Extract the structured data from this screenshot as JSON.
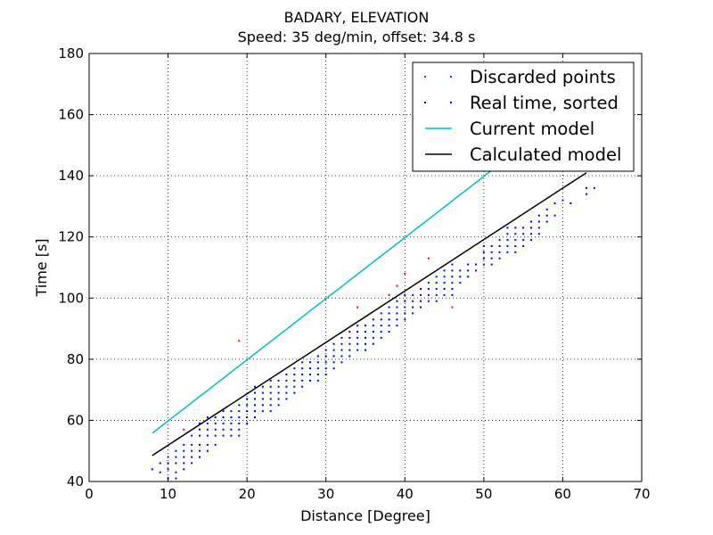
{
  "chart_data": {
    "type": "scatter",
    "title": "BADARY, ELEVATION",
    "subtitle": "Speed: 35 deg/min, offset: 34.8 s",
    "xlabel": "Distance [Degree]",
    "ylabel": "Time [s]",
    "xlim": [
      0,
      70
    ],
    "ylim": [
      40,
      180
    ],
    "xticks": [
      "0",
      "10",
      "20",
      "30",
      "40",
      "50",
      "60",
      "70"
    ],
    "yticks": [
      "40",
      "60",
      "80",
      "100",
      "120",
      "140",
      "160",
      "180"
    ],
    "grid": true,
    "legend_position": "top-right",
    "series": [
      {
        "name": "Discarded points",
        "kind": "points",
        "color": "#ff0000",
        "points": [
          [
            12,
            57
          ],
          [
            19,
            86
          ],
          [
            34,
            97
          ],
          [
            38,
            101
          ],
          [
            39,
            104
          ],
          [
            40,
            108
          ],
          [
            43,
            113
          ],
          [
            46,
            97
          ]
        ]
      },
      {
        "name": "Real time, sorted",
        "kind": "points",
        "color": "#0000ff",
        "points": [
          [
            8,
            44
          ],
          [
            9,
            43
          ],
          [
            9,
            46
          ],
          [
            10,
            41
          ],
          [
            10,
            44
          ],
          [
            10,
            46
          ],
          [
            10,
            48
          ],
          [
            11,
            41
          ],
          [
            11,
            43
          ],
          [
            11,
            46
          ],
          [
            11,
            48
          ],
          [
            11,
            50
          ],
          [
            12,
            44
          ],
          [
            12,
            46
          ],
          [
            12,
            48
          ],
          [
            12,
            50
          ],
          [
            12,
            52
          ],
          [
            13,
            46
          ],
          [
            13,
            48
          ],
          [
            13,
            50
          ],
          [
            13,
            52
          ],
          [
            13,
            55
          ],
          [
            14,
            48
          ],
          [
            14,
            50
          ],
          [
            14,
            52
          ],
          [
            14,
            55
          ],
          [
            14,
            57
          ],
          [
            14,
            59
          ],
          [
            15,
            50
          ],
          [
            15,
            52
          ],
          [
            15,
            55
          ],
          [
            15,
            57
          ],
          [
            15,
            59
          ],
          [
            15,
            61
          ],
          [
            16,
            52
          ],
          [
            16,
            55
          ],
          [
            16,
            57
          ],
          [
            16,
            59
          ],
          [
            16,
            61
          ],
          [
            17,
            55
          ],
          [
            17,
            57
          ],
          [
            17,
            59
          ],
          [
            17,
            61
          ],
          [
            17,
            63
          ],
          [
            18,
            55
          ],
          [
            18,
            57
          ],
          [
            18,
            59
          ],
          [
            18,
            61
          ],
          [
            18,
            63
          ],
          [
            19,
            55
          ],
          [
            19,
            57
          ],
          [
            19,
            59
          ],
          [
            19,
            61
          ],
          [
            19,
            63
          ],
          [
            19,
            65
          ],
          [
            20,
            59
          ],
          [
            20,
            61
          ],
          [
            20,
            63
          ],
          [
            20,
            65
          ],
          [
            20,
            67
          ],
          [
            21,
            61
          ],
          [
            21,
            63
          ],
          [
            21,
            65
          ],
          [
            21,
            67
          ],
          [
            21,
            69
          ],
          [
            21,
            71
          ],
          [
            22,
            63
          ],
          [
            22,
            65
          ],
          [
            22,
            67
          ],
          [
            22,
            69
          ],
          [
            22,
            71
          ],
          [
            23,
            63
          ],
          [
            23,
            65
          ],
          [
            23,
            67
          ],
          [
            23,
            69
          ],
          [
            23,
            71
          ],
          [
            23,
            73
          ],
          [
            24,
            65
          ],
          [
            24,
            67
          ],
          [
            24,
            69
          ],
          [
            24,
            71
          ],
          [
            24,
            73
          ],
          [
            25,
            67
          ],
          [
            25,
            69
          ],
          [
            25,
            71
          ],
          [
            25,
            73
          ],
          [
            25,
            75
          ],
          [
            26,
            69
          ],
          [
            26,
            71
          ],
          [
            26,
            73
          ],
          [
            26,
            75
          ],
          [
            26,
            77
          ],
          [
            27,
            71
          ],
          [
            27,
            73
          ],
          [
            27,
            75
          ],
          [
            27,
            77
          ],
          [
            27,
            79
          ],
          [
            28,
            73
          ],
          [
            28,
            75
          ],
          [
            28,
            77
          ],
          [
            28,
            79
          ],
          [
            29,
            73
          ],
          [
            29,
            75
          ],
          [
            29,
            77
          ],
          [
            29,
            79
          ],
          [
            29,
            81
          ],
          [
            30,
            75
          ],
          [
            30,
            77
          ],
          [
            30,
            79
          ],
          [
            30,
            81
          ],
          [
            30,
            83
          ],
          [
            31,
            77
          ],
          [
            31,
            79
          ],
          [
            31,
            81
          ],
          [
            31,
            83
          ],
          [
            31,
            85
          ],
          [
            32,
            79
          ],
          [
            32,
            81
          ],
          [
            32,
            83
          ],
          [
            32,
            85
          ],
          [
            32,
            87
          ],
          [
            33,
            81
          ],
          [
            33,
            83
          ],
          [
            33,
            85
          ],
          [
            33,
            87
          ],
          [
            33,
            89
          ],
          [
            34,
            83
          ],
          [
            34,
            85
          ],
          [
            34,
            87
          ],
          [
            34,
            89
          ],
          [
            34,
            91
          ],
          [
            35,
            83
          ],
          [
            35,
            85
          ],
          [
            35,
            87
          ],
          [
            35,
            89
          ],
          [
            35,
            91
          ],
          [
            36,
            85
          ],
          [
            36,
            87
          ],
          [
            36,
            89
          ],
          [
            36,
            91
          ],
          [
            36,
            93
          ],
          [
            37,
            87
          ],
          [
            37,
            89
          ],
          [
            37,
            91
          ],
          [
            37,
            93
          ],
          [
            37,
            95
          ],
          [
            38,
            89
          ],
          [
            38,
            91
          ],
          [
            38,
            93
          ],
          [
            38,
            95
          ],
          [
            38,
            97
          ],
          [
            39,
            91
          ],
          [
            39,
            93
          ],
          [
            39,
            95
          ],
          [
            39,
            97
          ],
          [
            39,
            99
          ],
          [
            40,
            93
          ],
          [
            40,
            95
          ],
          [
            40,
            97
          ],
          [
            40,
            99
          ],
          [
            40,
            101
          ],
          [
            41,
            95
          ],
          [
            41,
            97
          ],
          [
            41,
            99
          ],
          [
            41,
            101
          ],
          [
            42,
            97
          ],
          [
            42,
            99
          ],
          [
            42,
            101
          ],
          [
            42,
            103
          ],
          [
            43,
            99
          ],
          [
            43,
            101
          ],
          [
            43,
            103
          ],
          [
            43,
            105
          ],
          [
            44,
            99
          ],
          [
            44,
            101
          ],
          [
            44,
            103
          ],
          [
            44,
            105
          ],
          [
            44,
            107
          ],
          [
            45,
            101
          ],
          [
            45,
            103
          ],
          [
            45,
            105
          ],
          [
            45,
            107
          ],
          [
            45,
            109
          ],
          [
            46,
            101
          ],
          [
            46,
            103
          ],
          [
            46,
            105
          ],
          [
            46,
            107
          ],
          [
            46,
            109
          ],
          [
            46,
            111
          ],
          [
            47,
            105
          ],
          [
            47,
            107
          ],
          [
            47,
            109
          ],
          [
            48,
            107
          ],
          [
            48,
            109
          ],
          [
            48,
            111
          ],
          [
            49,
            109
          ],
          [
            49,
            111
          ],
          [
            50,
            111
          ],
          [
            50,
            113
          ],
          [
            50,
            115
          ],
          [
            50,
            117
          ],
          [
            51,
            111
          ],
          [
            51,
            113
          ],
          [
            51,
            115
          ],
          [
            51,
            117
          ],
          [
            52,
            113
          ],
          [
            52,
            115
          ],
          [
            52,
            117
          ],
          [
            52,
            119
          ],
          [
            53,
            115
          ],
          [
            53,
            117
          ],
          [
            53,
            119
          ],
          [
            53,
            121
          ],
          [
            53,
            123
          ],
          [
            54,
            115
          ],
          [
            54,
            117
          ],
          [
            54,
            119
          ],
          [
            54,
            121
          ],
          [
            54,
            123
          ],
          [
            55,
            117
          ],
          [
            55,
            119
          ],
          [
            55,
            121
          ],
          [
            55,
            123
          ],
          [
            56,
            119
          ],
          [
            56,
            121
          ],
          [
            56,
            123
          ],
          [
            56,
            125
          ],
          [
            57,
            121
          ],
          [
            57,
            123
          ],
          [
            57,
            125
          ],
          [
            57,
            127
          ],
          [
            58,
            125
          ],
          [
            58,
            127
          ],
          [
            58,
            129
          ],
          [
            59,
            127
          ],
          [
            59,
            131
          ],
          [
            60,
            132
          ],
          [
            61,
            131
          ],
          [
            63,
            134
          ],
          [
            63,
            136
          ],
          [
            64,
            136
          ]
        ]
      },
      {
        "name": "Current model",
        "kind": "line",
        "color": "#00bfbf",
        "points": [
          [
            8,
            55.8
          ],
          [
            51,
            141.8
          ]
        ]
      },
      {
        "name": "Calculated model",
        "kind": "line",
        "color": "#000000",
        "points": [
          [
            8,
            48.5
          ],
          [
            63,
            141
          ]
        ]
      }
    ]
  }
}
